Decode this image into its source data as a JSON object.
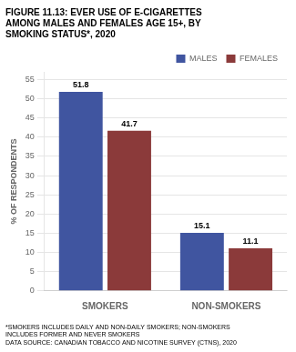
{
  "chart_data": {
    "type": "bar",
    "title": [
      "FIGURE 11.13: EVER USE OF E-CIGARETTES",
      "AMONG MALES AND FEMALES AGE 15+, BY",
      "SMOKING STATUS*, 2020"
    ],
    "annotations": [
      "*SMOKERS INCLUDES DAILY AND NON-DAILY SMOKERS; NON-SMOKERS",
      "INCLUDES FORMER AND NEVER SMOKERS",
      "DATA SOURCE: CANADIAN TOBACCO AND NICOTINE SURVEY (CTNS), 2020"
    ],
    "y_label": "% OF RESPONDENTS",
    "categories": [
      "SMOKERS",
      "NON-SMOKERS"
    ],
    "series": [
      {
        "name": "MALES",
        "color": "#4055A0",
        "values": [
          51.8,
          15.1
        ]
      },
      {
        "name": "FEMALES",
        "color": "#8B3A3A",
        "values": [
          41.7,
          11.1
        ]
      }
    ],
    "ylim": [
      0,
      57
    ],
    "yticks": [
      0,
      5,
      10,
      15,
      20,
      25,
      30,
      35,
      40,
      45,
      50,
      55
    ],
    "grid": true,
    "legend": "upper right",
    "data_labels": true
  }
}
